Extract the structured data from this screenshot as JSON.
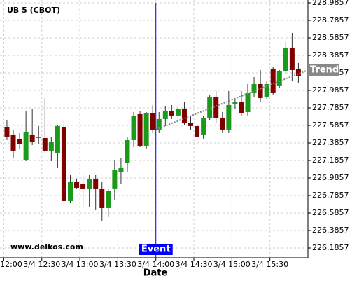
{
  "chart_data": {
    "type": "candlestick",
    "title": "UB 5 (CBOT)",
    "watermark": "www.delkos.com",
    "x_label": "Date",
    "x": [
      "3/4 12:00",
      "3/4 12:05",
      "3/4 12:10",
      "3/4 12:15",
      "3/4 12:20",
      "3/4 12:25",
      "3/4 12:30",
      "3/4 12:35",
      "3/4 12:40",
      "3/4 12:45",
      "3/4 12:50",
      "3/4 12:55",
      "3/4 13:00",
      "3/4 13:05",
      "3/4 13:10",
      "3/4 13:15",
      "3/4 13:20",
      "3/4 13:25",
      "3/4 13:30",
      "3/4 13:35",
      "3/4 13:40",
      "3/4 13:45",
      "3/4 13:50",
      "3/4 13:55",
      "3/4 14:00",
      "3/4 14:05",
      "3/4 14:10",
      "3/4 14:15",
      "3/4 14:20",
      "3/4 14:25",
      "3/4 14:30",
      "3/4 14:35",
      "3/4 14:40",
      "3/4 14:45",
      "3/4 14:50",
      "3/4 14:55",
      "3/4 15:00",
      "3/4 15:05",
      "3/4 15:10",
      "3/4 15:15",
      "3/4 15:20",
      "3/4 15:25",
      "3/4 15:30",
      "3/4 15:35",
      "3/4 15:40",
      "3/4 15:45",
      "3/4 15:50"
    ],
    "open": [
      227.57,
      227.474,
      227.434,
      227.194,
      227.474,
      227.442,
      227.442,
      227.298,
      227.274,
      227.562,
      226.722,
      226.938,
      226.914,
      226.858,
      226.978,
      226.858,
      226.642,
      226.858,
      227.05,
      227.154,
      227.418,
      227.714,
      227.354,
      227.722,
      227.538,
      227.658,
      227.754,
      227.698,
      227.778,
      227.61,
      227.578,
      227.474,
      227.674,
      227.914,
      227.674,
      227.538,
      227.834,
      227.858,
      227.738,
      227.954,
      228.058,
      227.914,
      228.234,
      228.034,
      228.202,
      228.474,
      228.234
    ],
    "high": [
      227.642,
      227.538,
      227.498,
      227.754,
      227.778,
      227.578,
      227.898,
      227.458,
      227.594,
      227.642,
      227.018,
      226.978,
      227.018,
      227.018,
      227.018,
      226.938,
      226.858,
      227.194,
      227.218,
      227.458,
      227.738,
      227.754,
      227.738,
      227.818,
      227.738,
      227.802,
      227.818,
      227.818,
      227.858,
      227.698,
      227.618,
      227.698,
      227.938,
      227.978,
      227.738,
      227.978,
      227.898,
      227.978,
      228.058,
      228.138,
      228.218,
      228.098,
      228.258,
      228.218,
      228.538,
      228.642,
      228.298
    ],
    "low": [
      227.418,
      227.218,
      227.322,
      227.178,
      227.362,
      227.378,
      227.274,
      227.178,
      227.098,
      226.698,
      226.698,
      226.858,
      226.658,
      226.658,
      226.618,
      226.498,
      226.538,
      226.738,
      226.922,
      227.058,
      227.338,
      227.338,
      227.322,
      227.498,
      227.498,
      227.578,
      227.658,
      227.642,
      227.594,
      227.538,
      227.434,
      227.434,
      227.642,
      227.618,
      227.498,
      227.498,
      227.778,
      227.698,
      227.698,
      227.914,
      227.858,
      227.882,
      227.938,
      228.018,
      228.178,
      228.098,
      228.074
    ],
    "close": [
      227.458,
      227.298,
      227.378,
      227.514,
      227.394,
      227.45,
      227.298,
      227.394,
      227.578,
      226.722,
      226.938,
      226.874,
      226.858,
      226.978,
      226.858,
      226.642,
      226.842,
      227.074,
      227.098,
      227.418,
      227.698,
      227.354,
      227.722,
      227.538,
      227.658,
      227.754,
      227.698,
      227.778,
      227.61,
      227.578,
      227.458,
      227.674,
      227.914,
      227.674,
      227.538,
      227.818,
      227.858,
      227.722,
      227.954,
      228.058,
      227.898,
      228.058,
      227.954,
      228.202,
      228.474,
      228.218,
      228.154
    ],
    "up_color": "#1a9a1a",
    "down_color": "#800000",
    "xlim": [
      "3/4 11:57",
      "3/4 16:00"
    ],
    "xticks": [
      "3/4 12:00",
      "3/4 12:30",
      "3/4 13:00",
      "3/4 13:30",
      "3/4 14:00",
      "3/4 14:30",
      "3/4 15:00",
      "3/4 15:30"
    ],
    "ylim": [
      226.0737,
      229.0177
    ],
    "yticks": [
      226.1857,
      226.3857,
      226.5857,
      226.7857,
      226.9857,
      227.1857,
      227.3857,
      227.5857,
      227.7857,
      227.9857,
      228.1857,
      228.3857,
      228.5857,
      228.7857,
      228.9857
    ],
    "grid": true,
    "event": {
      "x": "3/4 14:00",
      "label": "Event",
      "color": "#0000ff"
    },
    "trend": {
      "label": "Trend",
      "x": [
        "3/4 14:00",
        "3/4 16:00"
      ],
      "values": [
        227.538,
        228.218
      ]
    }
  }
}
